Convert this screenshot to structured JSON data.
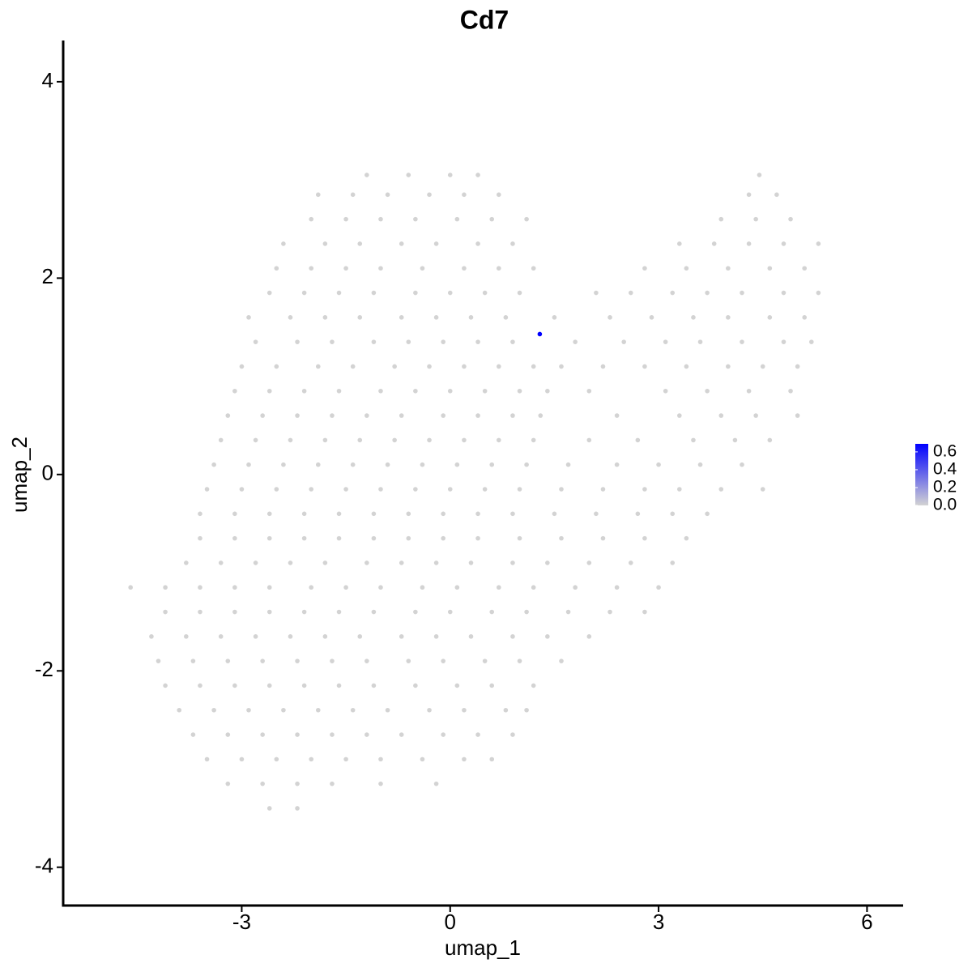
{
  "chart_data": {
    "type": "scatter",
    "title": "Cd7",
    "x_label": "umap_1",
    "y_label": "umap_2",
    "xlim": [
      -5.57,
      6.52
    ],
    "ylim": [
      -4.39,
      4.42
    ],
    "xticks": [
      -3,
      0,
      3,
      6
    ],
    "yticks": [
      -4,
      -2,
      0,
      2,
      4
    ],
    "color_low": "#d3d3d3",
    "color_high": "#0000ff",
    "colorbar_lim": [
      0,
      0.69
    ],
    "colorbar_ticks": [
      {
        "value": 0,
        "label": "0.0"
      },
      0.2,
      0.4,
      0.6
    ],
    "points": [
      [
        -1.2,
        3.05,
        0
      ],
      [
        -0.6,
        3.05,
        0
      ],
      [
        0.0,
        3.05,
        0
      ],
      [
        0.4,
        3.05,
        0
      ],
      [
        4.45,
        3.05,
        0
      ],
      [
        -1.9,
        2.85,
        0
      ],
      [
        -1.4,
        2.85,
        0
      ],
      [
        -0.9,
        2.85,
        0
      ],
      [
        -0.3,
        2.85,
        0
      ],
      [
        0.2,
        2.85,
        0
      ],
      [
        0.7,
        2.85,
        0
      ],
      [
        4.3,
        2.85,
        0
      ],
      [
        4.7,
        2.85,
        0
      ],
      [
        -2.0,
        2.6,
        0
      ],
      [
        -1.5,
        2.6,
        0
      ],
      [
        -1.0,
        2.6,
        0
      ],
      [
        -0.5,
        2.6,
        0
      ],
      [
        0.1,
        2.6,
        0
      ],
      [
        0.6,
        2.6,
        0
      ],
      [
        1.1,
        2.6,
        0
      ],
      [
        3.9,
        2.6,
        0
      ],
      [
        4.4,
        2.6,
        0
      ],
      [
        4.9,
        2.6,
        0
      ],
      [
        -2.4,
        2.35,
        0
      ],
      [
        -1.8,
        2.35,
        0
      ],
      [
        -1.3,
        2.35,
        0
      ],
      [
        -0.7,
        2.35,
        0
      ],
      [
        -0.2,
        2.35,
        0
      ],
      [
        0.4,
        2.35,
        0
      ],
      [
        0.9,
        2.35,
        0
      ],
      [
        3.3,
        2.35,
        0
      ],
      [
        3.8,
        2.35,
        0
      ],
      [
        4.3,
        2.35,
        0
      ],
      [
        4.8,
        2.35,
        0
      ],
      [
        5.3,
        2.35,
        0
      ],
      [
        -2.5,
        2.1,
        0
      ],
      [
        -2.0,
        2.1,
        0
      ],
      [
        -1.5,
        2.1,
        0
      ],
      [
        -1.0,
        2.1,
        0
      ],
      [
        -0.4,
        2.1,
        0
      ],
      [
        0.2,
        2.1,
        0
      ],
      [
        0.7,
        2.1,
        0
      ],
      [
        1.2,
        2.1,
        0
      ],
      [
        2.8,
        2.1,
        0
      ],
      [
        3.4,
        2.1,
        0
      ],
      [
        4.0,
        2.1,
        0
      ],
      [
        4.6,
        2.1,
        0
      ],
      [
        5.1,
        2.1,
        0
      ],
      [
        -2.6,
        1.85,
        0
      ],
      [
        -2.1,
        1.85,
        0
      ],
      [
        -1.6,
        1.85,
        0
      ],
      [
        -1.1,
        1.85,
        0
      ],
      [
        -0.5,
        1.85,
        0
      ],
      [
        0.0,
        1.85,
        0
      ],
      [
        0.5,
        1.85,
        0
      ],
      [
        1.0,
        1.85,
        0
      ],
      [
        2.1,
        1.85,
        0
      ],
      [
        2.6,
        1.85,
        0
      ],
      [
        3.2,
        1.85,
        0
      ],
      [
        3.7,
        1.85,
        0
      ],
      [
        4.2,
        1.85,
        0
      ],
      [
        4.8,
        1.85,
        0
      ],
      [
        5.3,
        1.85,
        0
      ],
      [
        -2.9,
        1.6,
        0
      ],
      [
        -2.3,
        1.6,
        0
      ],
      [
        -1.8,
        1.6,
        0
      ],
      [
        -1.3,
        1.6,
        0
      ],
      [
        -0.7,
        1.6,
        0
      ],
      [
        -0.2,
        1.6,
        0
      ],
      [
        0.3,
        1.6,
        0
      ],
      [
        0.8,
        1.6,
        0
      ],
      [
        1.5,
        1.6,
        0
      ],
      [
        2.3,
        1.6,
        0
      ],
      [
        2.9,
        1.6,
        0
      ],
      [
        3.5,
        1.6,
        0
      ],
      [
        4.0,
        1.6,
        0
      ],
      [
        4.6,
        1.6,
        0
      ],
      [
        5.1,
        1.6,
        0
      ],
      [
        -2.8,
        1.35,
        0
      ],
      [
        -2.2,
        1.35,
        0
      ],
      [
        -1.7,
        1.35,
        0
      ],
      [
        -1.1,
        1.35,
        0
      ],
      [
        -0.6,
        1.35,
        0
      ],
      [
        -0.1,
        1.35,
        0
      ],
      [
        0.4,
        1.35,
        0
      ],
      [
        0.9,
        1.35,
        0
      ],
      [
        1.8,
        1.35,
        0
      ],
      [
        2.5,
        1.35,
        0
      ],
      [
        3.1,
        1.35,
        0
      ],
      [
        3.6,
        1.35,
        0
      ],
      [
        4.2,
        1.35,
        0
      ],
      [
        4.8,
        1.35,
        0
      ],
      [
        5.2,
        1.35,
        0
      ],
      [
        -3.0,
        1.1,
        0
      ],
      [
        -2.5,
        1.1,
        0
      ],
      [
        -1.9,
        1.1,
        0
      ],
      [
        -1.4,
        1.1,
        0
      ],
      [
        -0.8,
        1.1,
        0
      ],
      [
        -0.3,
        1.1,
        0
      ],
      [
        0.2,
        1.1,
        0
      ],
      [
        0.7,
        1.1,
        0
      ],
      [
        1.2,
        1.1,
        0
      ],
      [
        1.6,
        1.1,
        0
      ],
      [
        2.2,
        1.1,
        0
      ],
      [
        2.8,
        1.1,
        0
      ],
      [
        3.4,
        1.1,
        0
      ],
      [
        4.0,
        1.1,
        0
      ],
      [
        4.5,
        1.1,
        0
      ],
      [
        5.0,
        1.1,
        0
      ],
      [
        -3.1,
        0.85,
        0
      ],
      [
        -2.6,
        0.85,
        0
      ],
      [
        -2.1,
        0.85,
        0
      ],
      [
        -1.6,
        0.85,
        0
      ],
      [
        -1.0,
        0.85,
        0
      ],
      [
        -0.5,
        0.85,
        0
      ],
      [
        0.0,
        0.85,
        0
      ],
      [
        0.5,
        0.85,
        0
      ],
      [
        1.0,
        0.85,
        0
      ],
      [
        1.4,
        0.85,
        0
      ],
      [
        2.0,
        0.85,
        0
      ],
      [
        3.1,
        0.85,
        0
      ],
      [
        3.7,
        0.85,
        0
      ],
      [
        4.3,
        0.85,
        0
      ],
      [
        4.9,
        0.85,
        0
      ],
      [
        -3.2,
        0.6,
        0
      ],
      [
        -2.7,
        0.6,
        0
      ],
      [
        -2.2,
        0.6,
        0
      ],
      [
        -1.7,
        0.6,
        0
      ],
      [
        -1.2,
        0.6,
        0
      ],
      [
        -0.7,
        0.6,
        0
      ],
      [
        -0.1,
        0.6,
        0
      ],
      [
        0.4,
        0.6,
        0
      ],
      [
        0.9,
        0.6,
        0
      ],
      [
        1.3,
        0.6,
        0
      ],
      [
        2.4,
        0.6,
        0
      ],
      [
        3.3,
        0.6,
        0
      ],
      [
        3.9,
        0.6,
        0
      ],
      [
        4.4,
        0.6,
        0
      ],
      [
        5.0,
        0.6,
        0
      ],
      [
        -3.3,
        0.35,
        0
      ],
      [
        -2.8,
        0.35,
        0
      ],
      [
        -2.3,
        0.35,
        0
      ],
      [
        -1.8,
        0.35,
        0
      ],
      [
        -1.3,
        0.35,
        0
      ],
      [
        -0.8,
        0.35,
        0
      ],
      [
        -0.3,
        0.35,
        0
      ],
      [
        0.2,
        0.35,
        0
      ],
      [
        0.7,
        0.35,
        0
      ],
      [
        1.2,
        0.35,
        0
      ],
      [
        2.0,
        0.35,
        0
      ],
      [
        2.7,
        0.35,
        0
      ],
      [
        3.5,
        0.35,
        0
      ],
      [
        4.1,
        0.35,
        0
      ],
      [
        4.6,
        0.35,
        0
      ],
      [
        -3.4,
        0.1,
        0
      ],
      [
        -2.9,
        0.1,
        0
      ],
      [
        -2.4,
        0.1,
        0
      ],
      [
        -1.9,
        0.1,
        0
      ],
      [
        -1.4,
        0.1,
        0
      ],
      [
        -0.9,
        0.1,
        0
      ],
      [
        -0.4,
        0.1,
        0
      ],
      [
        0.1,
        0.1,
        0
      ],
      [
        0.6,
        0.1,
        0
      ],
      [
        1.1,
        0.1,
        0
      ],
      [
        1.7,
        0.1,
        0
      ],
      [
        2.4,
        0.1,
        0
      ],
      [
        3.0,
        0.1,
        0
      ],
      [
        3.6,
        0.1,
        0
      ],
      [
        4.2,
        0.1,
        0
      ],
      [
        -3.5,
        -0.15,
        0
      ],
      [
        -3.0,
        -0.15,
        0
      ],
      [
        -2.5,
        -0.15,
        0
      ],
      [
        -2.0,
        -0.15,
        0
      ],
      [
        -1.5,
        -0.15,
        0
      ],
      [
        -1.0,
        -0.15,
        0
      ],
      [
        -0.5,
        -0.15,
        0
      ],
      [
        0.0,
        -0.15,
        0
      ],
      [
        0.5,
        -0.15,
        0
      ],
      [
        1.0,
        -0.15,
        0
      ],
      [
        1.6,
        -0.15,
        0
      ],
      [
        2.2,
        -0.15,
        0
      ],
      [
        2.8,
        -0.15,
        0
      ],
      [
        3.3,
        -0.15,
        0
      ],
      [
        3.9,
        -0.15,
        0
      ],
      [
        4.5,
        -0.15,
        0
      ],
      [
        -3.6,
        -0.4,
        0
      ],
      [
        -3.1,
        -0.4,
        0
      ],
      [
        -2.6,
        -0.4,
        0
      ],
      [
        -2.1,
        -0.4,
        0
      ],
      [
        -1.6,
        -0.4,
        0
      ],
      [
        -1.1,
        -0.4,
        0
      ],
      [
        -0.6,
        -0.4,
        0
      ],
      [
        -0.1,
        -0.4,
        0
      ],
      [
        0.4,
        -0.4,
        0
      ],
      [
        0.9,
        -0.4,
        0
      ],
      [
        1.5,
        -0.4,
        0
      ],
      [
        2.1,
        -0.4,
        0
      ],
      [
        2.7,
        -0.4,
        0
      ],
      [
        3.2,
        -0.4,
        0
      ],
      [
        3.7,
        -0.4,
        0
      ],
      [
        -3.6,
        -0.65,
        0
      ],
      [
        -3.1,
        -0.65,
        0
      ],
      [
        -2.6,
        -0.65,
        0
      ],
      [
        -2.1,
        -0.65,
        0
      ],
      [
        -1.6,
        -0.65,
        0
      ],
      [
        -1.1,
        -0.65,
        0
      ],
      [
        -0.6,
        -0.65,
        0
      ],
      [
        -0.1,
        -0.65,
        0
      ],
      [
        0.4,
        -0.65,
        0
      ],
      [
        1.0,
        -0.65,
        0
      ],
      [
        1.6,
        -0.65,
        0
      ],
      [
        2.2,
        -0.65,
        0
      ],
      [
        2.8,
        -0.65,
        0
      ],
      [
        3.4,
        -0.65,
        0
      ],
      [
        -3.8,
        -0.9,
        0
      ],
      [
        -3.3,
        -0.9,
        0
      ],
      [
        -2.8,
        -0.9,
        0
      ],
      [
        -2.3,
        -0.9,
        0
      ],
      [
        -1.8,
        -0.9,
        0
      ],
      [
        -1.2,
        -0.9,
        0
      ],
      [
        -0.7,
        -0.9,
        0
      ],
      [
        -0.2,
        -0.9,
        0
      ],
      [
        0.3,
        -0.9,
        0
      ],
      [
        0.9,
        -0.9,
        0
      ],
      [
        1.4,
        -0.9,
        0
      ],
      [
        2.0,
        -0.9,
        0
      ],
      [
        2.6,
        -0.9,
        0
      ],
      [
        3.2,
        -0.9,
        0
      ],
      [
        -4.6,
        -1.15,
        0
      ],
      [
        -4.1,
        -1.15,
        0
      ],
      [
        -3.6,
        -1.15,
        0
      ],
      [
        -3.1,
        -1.15,
        0
      ],
      [
        -2.6,
        -1.15,
        0
      ],
      [
        -2.0,
        -1.15,
        0
      ],
      [
        -1.5,
        -1.15,
        0
      ],
      [
        -1.0,
        -1.15,
        0
      ],
      [
        -0.4,
        -1.15,
        0
      ],
      [
        0.1,
        -1.15,
        0
      ],
      [
        0.7,
        -1.15,
        0
      ],
      [
        1.2,
        -1.15,
        0
      ],
      [
        1.8,
        -1.15,
        0
      ],
      [
        2.4,
        -1.15,
        0
      ],
      [
        3.0,
        -1.15,
        0
      ],
      [
        -4.1,
        -1.4,
        0
      ],
      [
        -3.6,
        -1.4,
        0
      ],
      [
        -3.1,
        -1.4,
        0
      ],
      [
        -2.6,
        -1.4,
        0
      ],
      [
        -2.1,
        -1.4,
        0
      ],
      [
        -1.6,
        -1.4,
        0
      ],
      [
        -1.1,
        -1.4,
        0
      ],
      [
        -0.5,
        -1.4,
        0
      ],
      [
        0.0,
        -1.4,
        0
      ],
      [
        0.6,
        -1.4,
        0
      ],
      [
        1.1,
        -1.4,
        0
      ],
      [
        1.7,
        -1.4,
        0
      ],
      [
        2.3,
        -1.4,
        0
      ],
      [
        2.8,
        -1.4,
        0
      ],
      [
        -4.3,
        -1.65,
        0
      ],
      [
        -3.8,
        -1.65,
        0
      ],
      [
        -3.3,
        -1.65,
        0
      ],
      [
        -2.8,
        -1.65,
        0
      ],
      [
        -2.3,
        -1.65,
        0
      ],
      [
        -1.8,
        -1.65,
        0
      ],
      [
        -1.3,
        -1.65,
        0
      ],
      [
        -0.7,
        -1.65,
        0
      ],
      [
        -0.2,
        -1.65,
        0
      ],
      [
        0.3,
        -1.65,
        0
      ],
      [
        0.9,
        -1.65,
        0
      ],
      [
        1.4,
        -1.65,
        0
      ],
      [
        2.0,
        -1.65,
        0
      ],
      [
        -4.2,
        -1.9,
        0
      ],
      [
        -3.7,
        -1.9,
        0
      ],
      [
        -3.2,
        -1.9,
        0
      ],
      [
        -2.7,
        -1.9,
        0
      ],
      [
        -2.2,
        -1.9,
        0
      ],
      [
        -1.7,
        -1.9,
        0
      ],
      [
        -1.2,
        -1.9,
        0
      ],
      [
        -0.6,
        -1.9,
        0
      ],
      [
        -0.1,
        -1.9,
        0
      ],
      [
        0.5,
        -1.9,
        0
      ],
      [
        1.0,
        -1.9,
        0
      ],
      [
        1.6,
        -1.9,
        0
      ],
      [
        -4.1,
        -2.15,
        0
      ],
      [
        -3.6,
        -2.15,
        0
      ],
      [
        -3.1,
        -2.15,
        0
      ],
      [
        -2.6,
        -2.15,
        0
      ],
      [
        -2.1,
        -2.15,
        0
      ],
      [
        -1.6,
        -2.15,
        0
      ],
      [
        -1.1,
        -2.15,
        0
      ],
      [
        -0.5,
        -2.15,
        0
      ],
      [
        0.1,
        -2.15,
        0
      ],
      [
        0.6,
        -2.15,
        0
      ],
      [
        1.2,
        -2.15,
        0
      ],
      [
        -3.9,
        -2.4,
        0
      ],
      [
        -3.4,
        -2.4,
        0
      ],
      [
        -2.9,
        -2.4,
        0
      ],
      [
        -2.4,
        -2.4,
        0
      ],
      [
        -1.9,
        -2.4,
        0
      ],
      [
        -1.4,
        -2.4,
        0
      ],
      [
        -0.9,
        -2.4,
        0
      ],
      [
        -0.3,
        -2.4,
        0
      ],
      [
        0.2,
        -2.4,
        0
      ],
      [
        0.8,
        -2.4,
        0
      ],
      [
        1.1,
        -2.4,
        0
      ],
      [
        -3.7,
        -2.65,
        0
      ],
      [
        -3.2,
        -2.65,
        0
      ],
      [
        -2.7,
        -2.65,
        0
      ],
      [
        -2.2,
        -2.65,
        0
      ],
      [
        -1.7,
        -2.65,
        0
      ],
      [
        -1.2,
        -2.65,
        0
      ],
      [
        -0.7,
        -2.65,
        0
      ],
      [
        -0.1,
        -2.65,
        0
      ],
      [
        0.4,
        -2.65,
        0
      ],
      [
        0.9,
        -2.65,
        0
      ],
      [
        -3.5,
        -2.9,
        0
      ],
      [
        -3.0,
        -2.9,
        0
      ],
      [
        -2.5,
        -2.9,
        0
      ],
      [
        -2.0,
        -2.9,
        0
      ],
      [
        -1.5,
        -2.9,
        0
      ],
      [
        -1.0,
        -2.9,
        0
      ],
      [
        -0.4,
        -2.9,
        0
      ],
      [
        0.2,
        -2.9,
        0
      ],
      [
        0.6,
        -2.9,
        0
      ],
      [
        -3.2,
        -3.15,
        0
      ],
      [
        -2.7,
        -3.15,
        0
      ],
      [
        -2.2,
        -3.15,
        0
      ],
      [
        -1.7,
        -3.15,
        0
      ],
      [
        -1.0,
        -3.15,
        0
      ],
      [
        -0.2,
        -3.15,
        0
      ],
      [
        -2.6,
        -3.4,
        0
      ],
      [
        -2.2,
        -3.4,
        0
      ],
      [
        1.29,
        1.43,
        0.69
      ]
    ]
  }
}
